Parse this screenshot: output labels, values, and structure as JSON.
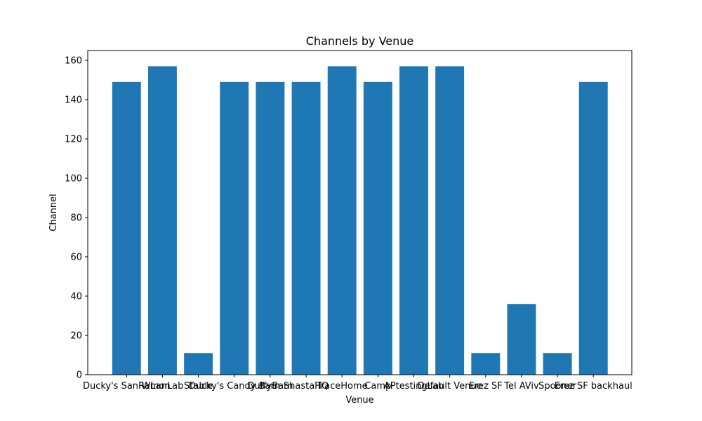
{
  "chart_data": {
    "type": "bar",
    "title": "Channels by Venue",
    "xlabel": "Venue",
    "ylabel": "Channel",
    "categories": [
      "Ducky's SanRamon",
      "WLanLab",
      "Stable",
      "Ducky's Candy Barn",
      "DuffyBarn",
      "ShastaHQ",
      "TraceHome",
      "Camp",
      "APtestingLab",
      "Default Venue",
      "Erez SF",
      "Tel AViv",
      "Spooner",
      "Erez SF backhaul"
    ],
    "values": [
      149,
      157,
      11,
      149,
      149,
      149,
      157,
      149,
      157,
      157,
      11,
      36,
      11,
      149
    ],
    "ylim": [
      0,
      165
    ],
    "yticks": [
      0,
      20,
      40,
      60,
      80,
      100,
      120,
      140,
      160
    ],
    "bar_color": "#1f77b4",
    "grid": false,
    "legend": "none"
  }
}
